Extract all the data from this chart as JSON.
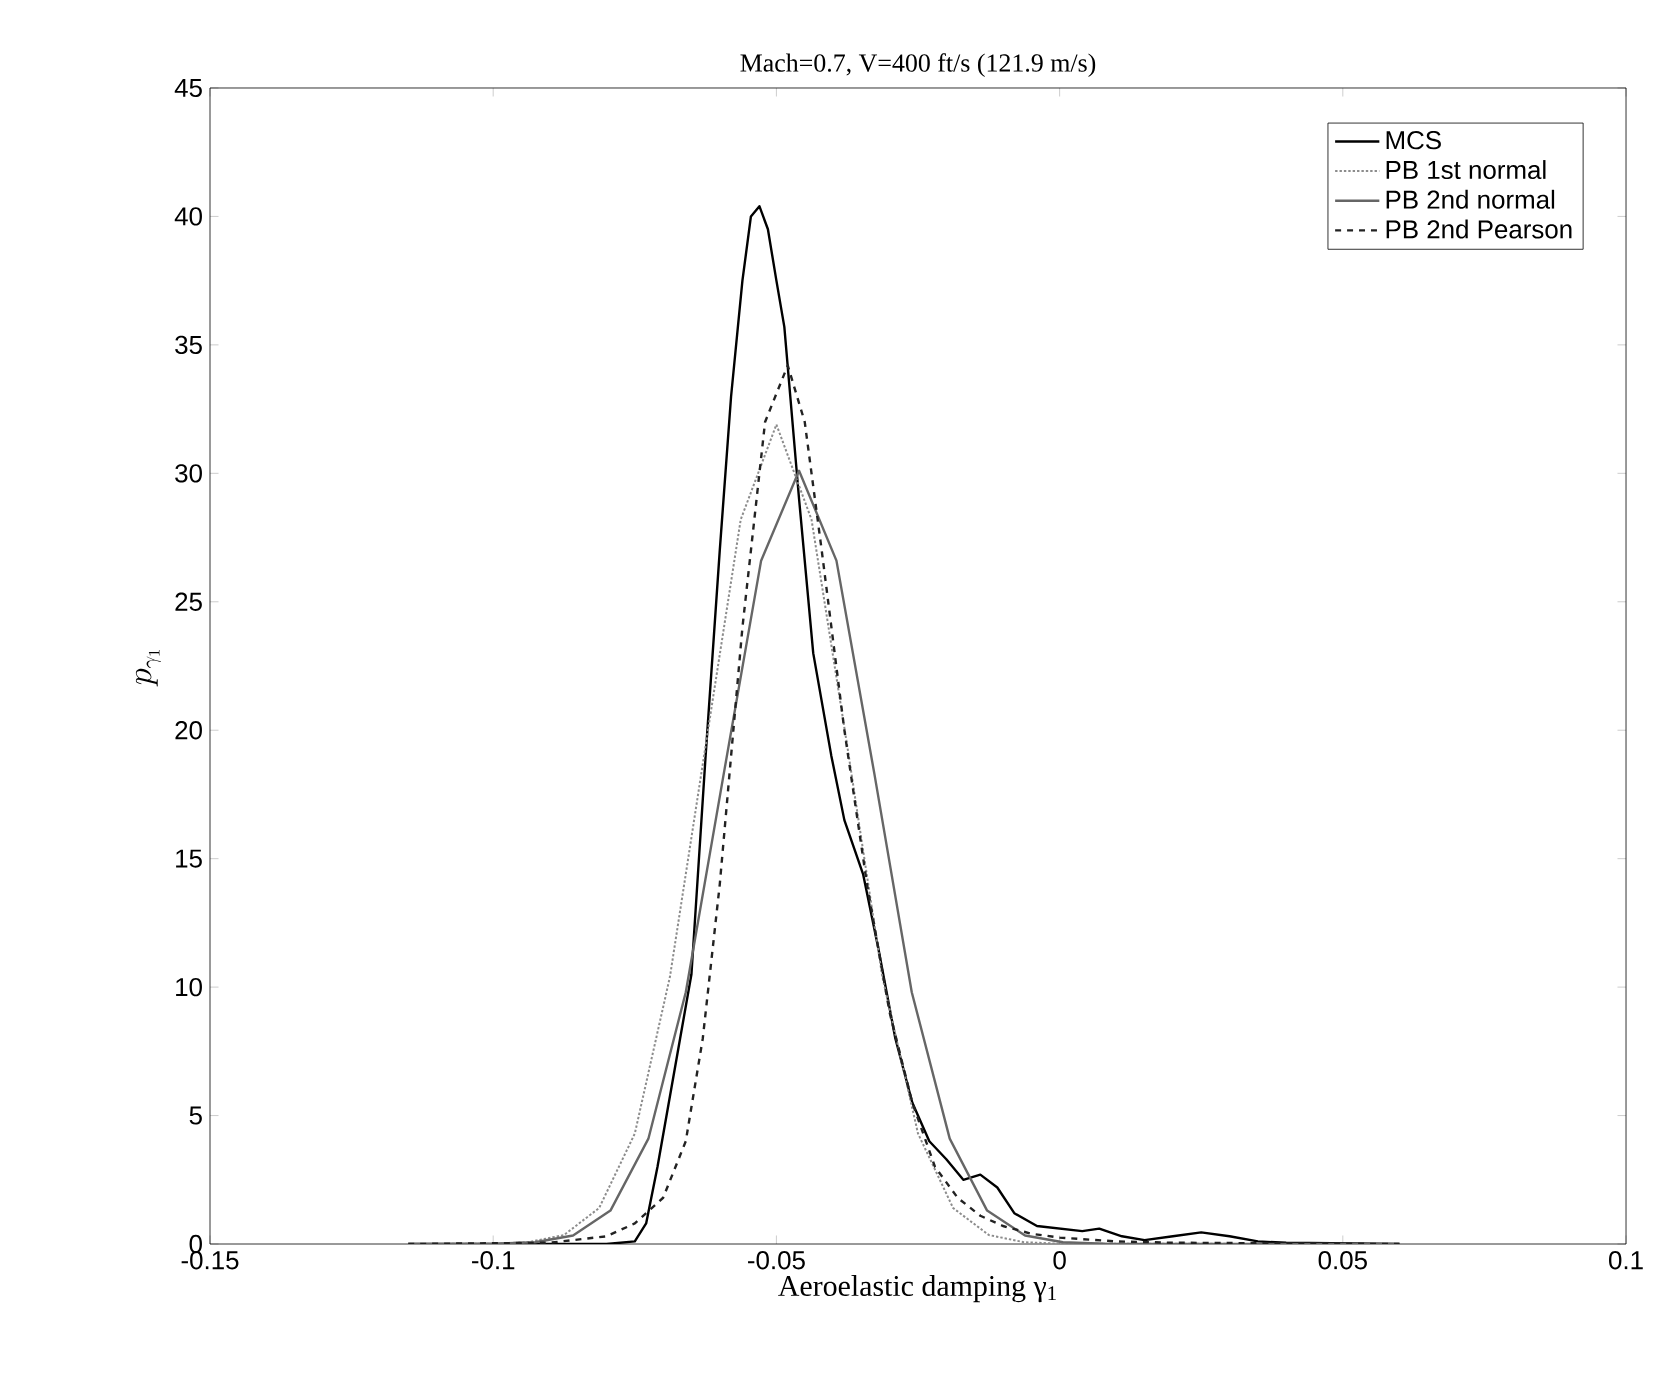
{
  "chart_data": {
    "type": "line",
    "title": "Mach=0.7, V=400 ft/s (121.9 m/s)",
    "xlabel": "Aeroelastic damping γ$_{1}$",
    "ylabel": "p_{\\gamma_1}",
    "xlim": [
      -0.15,
      0.1
    ],
    "ylim": [
      0,
      45
    ],
    "xticks": [
      -0.15,
      -0.1,
      -0.05,
      0,
      0.05,
      0.1
    ],
    "yticks": [
      0,
      5,
      10,
      15,
      20,
      25,
      30,
      35,
      40,
      45
    ],
    "grid": false,
    "legend": "top right",
    "marker": "none",
    "series": [
      {
        "name": "MCS",
        "color": "#000000",
        "line_style": "solid",
        "x": [
          -0.115,
          -0.08,
          -0.075,
          -0.073,
          -0.071,
          -0.069,
          -0.067,
          -0.065,
          -0.0625,
          -0.06,
          -0.058,
          -0.056,
          -0.0545,
          -0.053,
          -0.0515,
          -0.05,
          -0.0486,
          -0.046,
          -0.0435,
          -0.0403,
          -0.038,
          -0.0347,
          -0.032,
          -0.029,
          -0.026,
          -0.023,
          -0.02,
          -0.017,
          -0.014,
          -0.011,
          -0.008,
          -0.004,
          0.0,
          0.004,
          0.007,
          0.011,
          0.015,
          0.02,
          0.025,
          0.03,
          0.035,
          0.04,
          0.06
        ],
        "values": [
          0,
          0,
          0.1,
          0.8,
          3,
          5.5,
          8,
          10.5,
          19,
          27,
          33,
          37.5,
          40,
          40.4,
          39.5,
          37.5,
          35.7,
          29,
          23,
          19,
          16.5,
          14.4,
          11.5,
          8,
          5.5,
          4,
          3.3,
          2.5,
          2.7,
          2.2,
          1.2,
          0.7,
          0.6,
          0.5,
          0.6,
          0.3,
          0.15,
          0.3,
          0.45,
          0.3,
          0.1,
          0.05,
          0
        ]
      },
      {
        "name": "PB 1st normal",
        "color": "#8c8c8c",
        "line_style": "dotted",
        "x": [
          -0.115,
          -0.1,
          -0.0938,
          -0.0875,
          -0.0813,
          -0.075,
          -0.0688,
          -0.0625,
          -0.0563,
          -0.05,
          -0.0438,
          -0.0375,
          -0.0313,
          -0.025,
          -0.0188,
          -0.0125,
          -0.0063,
          0.0,
          0.06
        ],
        "values": [
          0,
          0.01,
          0.07,
          0.35,
          1.4,
          4.3,
          10.4,
          19.4,
          28.2,
          31.9,
          28.2,
          19.4,
          10.4,
          4.3,
          1.4,
          0.35,
          0.07,
          0.01,
          0
        ]
      },
      {
        "name": "PB 2nd normal",
        "color": "#666666",
        "line_style": "solid",
        "x": [
          -0.115,
          -0.1,
          -0.0926,
          -0.0859,
          -0.0793,
          -0.0726,
          -0.066,
          -0.0593,
          -0.0527,
          -0.046,
          -0.0394,
          -0.0327,
          -0.0261,
          -0.0194,
          -0.0128,
          -0.0061,
          0.0006,
          0.008,
          0.06
        ],
        "values": [
          0,
          0.01,
          0.07,
          0.33,
          1.3,
          4.1,
          9.8,
          18.3,
          26.6,
          30.1,
          26.6,
          18.3,
          9.8,
          4.1,
          1.3,
          0.33,
          0.07,
          0.01,
          0
        ]
      },
      {
        "name": "PB 2nd Pearson",
        "color": "#222222",
        "line_style": "dashed",
        "x": [
          -0.115,
          -0.09,
          -0.08,
          -0.075,
          -0.07,
          -0.066,
          -0.063,
          -0.06,
          -0.056,
          -0.052,
          -0.048,
          -0.045,
          -0.042,
          -0.038,
          -0.034,
          -0.03,
          -0.026,
          -0.022,
          -0.018,
          -0.014,
          -0.01,
          -0.005,
          0.0,
          0.01,
          0.02,
          0.06
        ],
        "values": [
          0,
          0.05,
          0.3,
          0.8,
          1.8,
          4,
          8,
          14,
          24,
          32,
          34.2,
          32,
          27,
          20,
          14,
          9,
          5.5,
          3,
          1.8,
          1.1,
          0.7,
          0.4,
          0.25,
          0.1,
          0.05,
          0
        ]
      }
    ]
  }
}
